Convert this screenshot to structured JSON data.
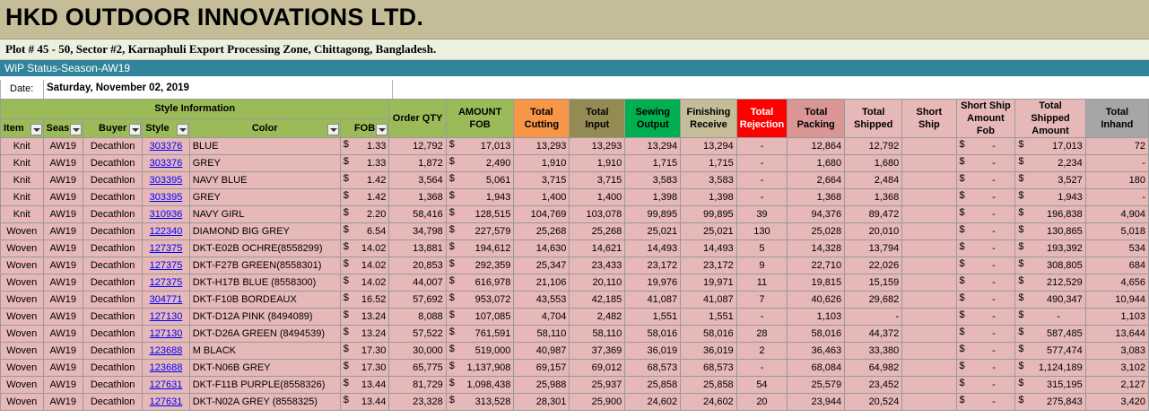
{
  "company": "HKD OUTDOOR INNOVATIONS LTD.",
  "address": "Plot # 45 - 50, Sector #2, Karnaphuli Export Processing Zone, Chittagong, Bangladesh.",
  "report_title": "WiP Status-Season-AW19",
  "date_label": "Date:",
  "date_value": "Saturday, November 02, 2019",
  "header": {
    "style_information": "Style Information",
    "item": "Item",
    "season": "Seas",
    "buyer": "Buyer",
    "style": "Style",
    "color": "Color",
    "fob": "FOB",
    "order_qty": "Order QTY",
    "amount_fob": "AMOUNT FOB",
    "total_cutting": "Total Cutting",
    "total_input": "Total Input",
    "sewing_output": "Sewing Output",
    "finishing_receive": "Finishing Receive",
    "total_rejection": "Total Rejection",
    "total_packing": "Total Packing",
    "total_shipped": "Total Shipped",
    "short_ship": "Short Ship",
    "short_ship_amount_fob": "Short Ship Amount Fob",
    "total_shipped_amount": "Total Shipped Amount",
    "total_inhand": "Total Inhand"
  },
  "currency": "$",
  "rows": [
    {
      "item": "Knit",
      "season": "AW19",
      "buyer": "Decathlon",
      "style": "303376",
      "color": "BLUE",
      "fob": "1.33",
      "order_qty": "12,792",
      "amount_fob": "17,013",
      "cutting": "13,293",
      "input": "13,293",
      "sewing": "13,294",
      "finishing": "13,294",
      "rejection": "-",
      "packing": "12,864",
      "shipped": "12,792",
      "short_ship": "",
      "short_amt": "-",
      "shipped_amt": "17,013",
      "inhand": "72"
    },
    {
      "item": "Knit",
      "season": "AW19",
      "buyer": "Decathlon",
      "style": "303376",
      "color": "GREY",
      "fob": "1.33",
      "order_qty": "1,872",
      "amount_fob": "2,490",
      "cutting": "1,910",
      "input": "1,910",
      "sewing": "1,715",
      "finishing": "1,715",
      "rejection": "-",
      "packing": "1,680",
      "shipped": "1,680",
      "short_ship": "",
      "short_amt": "-",
      "shipped_amt": "2,234",
      "inhand": "-"
    },
    {
      "item": "Knit",
      "season": "AW19",
      "buyer": "Decathlon",
      "style": "303395",
      "color": "NAVY BLUE",
      "fob": "1.42",
      "order_qty": "3,564",
      "amount_fob": "5,061",
      "cutting": "3,715",
      "input": "3,715",
      "sewing": "3,583",
      "finishing": "3,583",
      "rejection": "-",
      "packing": "2,664",
      "shipped": "2,484",
      "short_ship": "",
      "short_amt": "-",
      "shipped_amt": "3,527",
      "inhand": "180"
    },
    {
      "item": "Knit",
      "season": "AW19",
      "buyer": "Decathlon",
      "style": "303395",
      "color": "GREY",
      "fob": "1.42",
      "order_qty": "1,368",
      "amount_fob": "1,943",
      "cutting": "1,400",
      "input": "1,400",
      "sewing": "1,398",
      "finishing": "1,398",
      "rejection": "-",
      "packing": "1,368",
      "shipped": "1,368",
      "short_ship": "",
      "short_amt": "-",
      "shipped_amt": "1,943",
      "inhand": "-"
    },
    {
      "item": "Knit",
      "season": "AW19",
      "buyer": "Decathlon",
      "style": "310936",
      "color": "NAVY GIRL",
      "fob": "2.20",
      "order_qty": "58,416",
      "amount_fob": "128,515",
      "cutting": "104,769",
      "input": "103,078",
      "sewing": "99,895",
      "finishing": "99,895",
      "rejection": "39",
      "packing": "94,376",
      "shipped": "89,472",
      "short_ship": "",
      "short_amt": "-",
      "shipped_amt": "196,838",
      "inhand": "4,904"
    },
    {
      "item": "Woven",
      "season": "AW19",
      "buyer": "Decathlon",
      "style": "122340",
      "color": "DIAMOND BIG GREY",
      "fob": "6.54",
      "order_qty": "34,798",
      "amount_fob": "227,579",
      "cutting": "25,268",
      "input": "25,268",
      "sewing": "25,021",
      "finishing": "25,021",
      "rejection": "130",
      "packing": "25,028",
      "shipped": "20,010",
      "short_ship": "",
      "short_amt": "-",
      "shipped_amt": "130,865",
      "inhand": "5,018"
    },
    {
      "item": "Woven",
      "season": "AW19",
      "buyer": "Decathlon",
      "style": "127375",
      "color": "DKT-E02B OCHRE(8558299)",
      "fob": "14.02",
      "order_qty": "13,881",
      "amount_fob": "194,612",
      "cutting": "14,630",
      "input": "14,621",
      "sewing": "14,493",
      "finishing": "14,493",
      "rejection": "5",
      "packing": "14,328",
      "shipped": "13,794",
      "short_ship": "",
      "short_amt": "-",
      "shipped_amt": "193,392",
      "inhand": "534"
    },
    {
      "item": "Woven",
      "season": "AW19",
      "buyer": "Decathlon",
      "style": "127375",
      "color": "DKT-F27B GREEN(8558301)",
      "fob": "14.02",
      "order_qty": "20,853",
      "amount_fob": "292,359",
      "cutting": "25,347",
      "input": "23,433",
      "sewing": "23,172",
      "finishing": "23,172",
      "rejection": "9",
      "packing": "22,710",
      "shipped": "22,026",
      "short_ship": "",
      "short_amt": "-",
      "shipped_amt": "308,805",
      "inhand": "684"
    },
    {
      "item": "Woven",
      "season": "AW19",
      "buyer": "Decathlon",
      "style": "127375",
      "color": "DKT-H17B BLUE (8558300)",
      "fob": "14.02",
      "order_qty": "44,007",
      "amount_fob": "616,978",
      "cutting": "21,106",
      "input": "20,110",
      "sewing": "19,976",
      "finishing": "19,971",
      "rejection": "11",
      "packing": "19,815",
      "shipped": "15,159",
      "short_ship": "",
      "short_amt": "-",
      "shipped_amt": "212,529",
      "inhand": "4,656"
    },
    {
      "item": "Woven",
      "season": "AW19",
      "buyer": "Decathlon",
      "style": "304771",
      "color": "DKT-F10B BORDEAUX",
      "fob": "16.52",
      "order_qty": "57,692",
      "amount_fob": "953,072",
      "cutting": "43,553",
      "input": "42,185",
      "sewing": "41,087",
      "finishing": "41,087",
      "rejection": "7",
      "packing": "40,626",
      "shipped": "29,682",
      "short_ship": "",
      "short_amt": "-",
      "shipped_amt": "490,347",
      "inhand": "10,944"
    },
    {
      "item": "Woven",
      "season": "AW19",
      "buyer": "Decathlon",
      "style": "127130",
      "color": "DKT-D12A PINK (8494089)",
      "fob": "13.24",
      "order_qty": "8,088",
      "amount_fob": "107,085",
      "cutting": "4,704",
      "input": "2,482",
      "sewing": "1,551",
      "finishing": "1,551",
      "rejection": "-",
      "packing": "1,103",
      "shipped": "-",
      "short_ship": "",
      "short_amt": "-",
      "shipped_amt": "-",
      "inhand": "1,103"
    },
    {
      "item": "Woven",
      "season": "AW19",
      "buyer": "Decathlon",
      "style": "127130",
      "color": "DKT-D26A GREEN (8494539)",
      "fob": "13.24",
      "order_qty": "57,522",
      "amount_fob": "761,591",
      "cutting": "58,110",
      "input": "58,110",
      "sewing": "58,016",
      "finishing": "58,016",
      "rejection": "28",
      "packing": "58,016",
      "shipped": "44,372",
      "short_ship": "",
      "short_amt": "-",
      "shipped_amt": "587,485",
      "inhand": "13,644"
    },
    {
      "item": "Woven",
      "season": "AW19",
      "buyer": "Decathlon",
      "style": "123688",
      "color": "M BLACK",
      "fob": "17.30",
      "order_qty": "30,000",
      "amount_fob": "519,000",
      "cutting": "40,987",
      "input": "37,369",
      "sewing": "36,019",
      "finishing": "36,019",
      "rejection": "2",
      "packing": "36,463",
      "shipped": "33,380",
      "short_ship": "",
      "short_amt": "-",
      "shipped_amt": "577,474",
      "inhand": "3,083"
    },
    {
      "item": "Woven",
      "season": "AW19",
      "buyer": "Decathlon",
      "style": "123688",
      "color": "DKT-N06B GREY",
      "fob": "17.30",
      "order_qty": "65,775",
      "amount_fob": "1,137,908",
      "cutting": "69,157",
      "input": "69,012",
      "sewing": "68,573",
      "finishing": "68,573",
      "rejection": "-",
      "packing": "68,084",
      "shipped": "64,982",
      "short_ship": "",
      "short_amt": "-",
      "shipped_amt": "1,124,189",
      "inhand": "3,102"
    },
    {
      "item": "Woven",
      "season": "AW19",
      "buyer": "Decathlon",
      "style": "127631",
      "color": "DKT-F11B PURPLE(8558326)",
      "fob": "13.44",
      "order_qty": "81,729",
      "amount_fob": "1,098,438",
      "cutting": "25,988",
      "input": "25,937",
      "sewing": "25,858",
      "finishing": "25,858",
      "rejection": "54",
      "packing": "25,579",
      "shipped": "23,452",
      "short_ship": "",
      "short_amt": "-",
      "shipped_amt": "315,195",
      "inhand": "2,127"
    },
    {
      "item": "Woven",
      "season": "AW19",
      "buyer": "Decathlon",
      "style": "127631",
      "color": "DKT-N02A GREY (8558325)",
      "fob": "13.44",
      "order_qty": "23,328",
      "amount_fob": "313,528",
      "cutting": "28,301",
      "input": "25,900",
      "sewing": "24,602",
      "finishing": "24,602",
      "rejection": "20",
      "packing": "23,944",
      "shipped": "20,524",
      "short_ship": "",
      "short_amt": "-",
      "shipped_amt": "275,843",
      "inhand": "3,420"
    }
  ]
}
